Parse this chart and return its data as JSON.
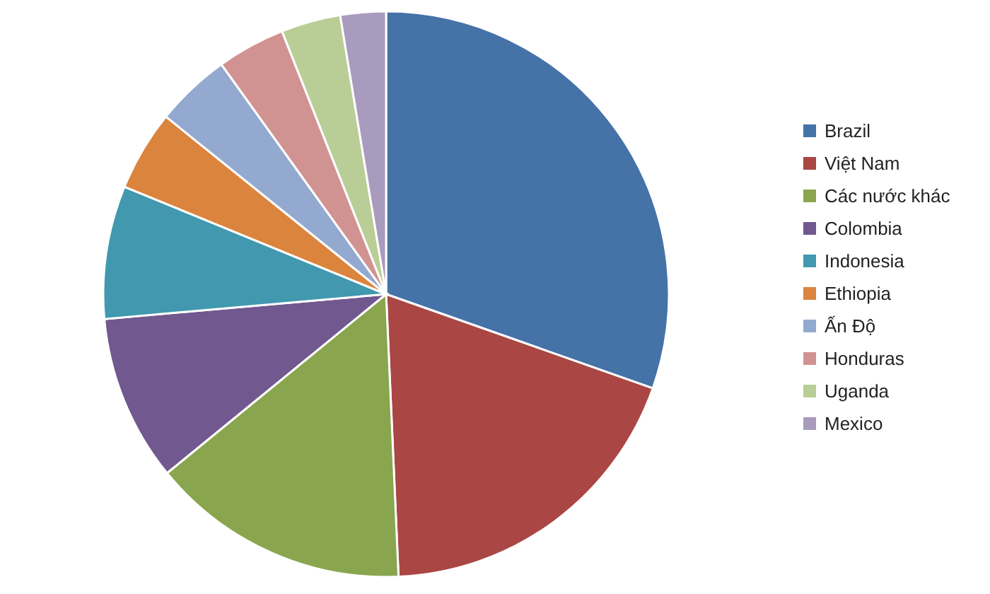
{
  "chart_data": {
    "type": "pie",
    "categories": [
      "Brazil",
      "Việt Nam",
      "Các nước khác",
      "Colombia",
      "Indonesia",
      "Ethiopia",
      "Ấn Độ",
      "Honduras",
      "Uganda",
      "Mexico"
    ],
    "values": [
      30.4,
      18.9,
      14.8,
      9.5,
      7.6,
      4.6,
      4.3,
      3.9,
      3.4,
      2.6
    ],
    "colors": [
      "#4572a7",
      "#aa4643",
      "#89a54e",
      "#71588f",
      "#4198af",
      "#db843d",
      "#93a9cf",
      "#d19392",
      "#b9cd96",
      "#a99bbd"
    ],
    "legend": "right"
  }
}
